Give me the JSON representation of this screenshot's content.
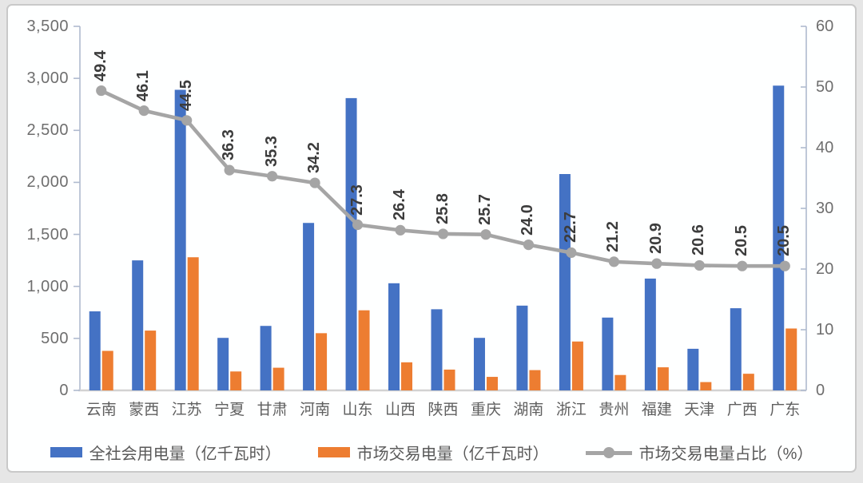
{
  "colors": {
    "bar_primary": "#4472C4",
    "bar_secondary": "#ED7D31",
    "line": "#A5A5A5",
    "axis_line_side": "#AFBACF",
    "axis_line_bottom": "#D2D2D2",
    "axis_text": "#6E6E6E",
    "category_text": "#5F5F5F",
    "data_label_text": "#3C3C3C",
    "legend_text": "#595959",
    "card_border": "#C9C9C9",
    "card_bg": "#FEFFFF",
    "page_bg": "#E6E6E6"
  },
  "chart_data": {
    "type": "bar+line",
    "categories": [
      "云南",
      "蒙西",
      "江苏",
      "宁夏",
      "甘肃",
      "河南",
      "山东",
      "山西",
      "陕西",
      "重庆",
      "湖南",
      "浙江",
      "贵州",
      "福建",
      "天津",
      "广西",
      "广东"
    ],
    "series": [
      {
        "name": "全社会用电量（亿千瓦时）",
        "type": "bar",
        "axis": "left",
        "color": "#4472C4",
        "values": [
          760,
          1250,
          2890,
          505,
          620,
          1610,
          2810,
          1030,
          780,
          505,
          815,
          2080,
          700,
          1075,
          400,
          790,
          2930
        ]
      },
      {
        "name": "市场交易电量（亿千瓦时）",
        "type": "bar",
        "axis": "left",
        "color": "#ED7D31",
        "values": [
          380,
          575,
          1280,
          182,
          218,
          550,
          770,
          270,
          200,
          130,
          195,
          470,
          148,
          222,
          80,
          160,
          595
        ]
      },
      {
        "name": "市场交易电量占比（%）",
        "type": "line",
        "axis": "right",
        "color": "#A5A5A5",
        "data_labels": true,
        "values": [
          49.4,
          46.1,
          44.5,
          36.3,
          35.3,
          34.2,
          27.3,
          26.4,
          25.8,
          25.7,
          24.0,
          22.7,
          21.2,
          20.9,
          20.6,
          20.5,
          20.5
        ]
      }
    ],
    "left_axis": {
      "min": 0,
      "max": 3500,
      "step": 500,
      "tick_labels": [
        "0",
        "500",
        "1,000",
        "1,500",
        "2,000",
        "2,500",
        "3,000",
        "3,500"
      ]
    },
    "right_axis": {
      "min": 0,
      "max": 60,
      "step": 10,
      "tick_labels": [
        "0",
        "10",
        "20",
        "30",
        "40",
        "50",
        "60"
      ]
    },
    "grid": false,
    "legend_position": "bottom"
  }
}
